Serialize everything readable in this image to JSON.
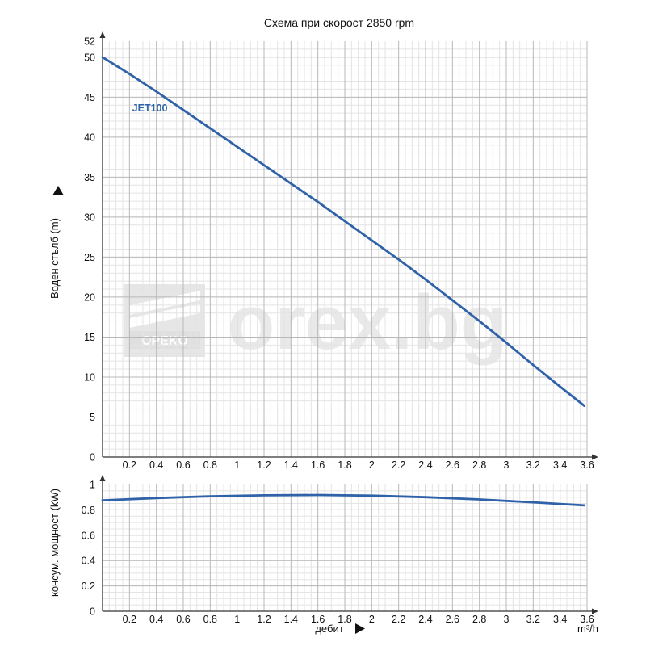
{
  "chart_data": [
    {
      "type": "line",
      "title": "Схема при скорост 2850 rpm",
      "xlabel": "",
      "ylabel": "Воден стълб (m)",
      "xlim": [
        0,
        3.6
      ],
      "ylim": [
        0,
        52
      ],
      "grid": true,
      "x_ticks": [
        "0.2",
        "0.4",
        "0.6",
        "0.8",
        "1",
        "1.2",
        "1.4",
        "1.6",
        "1.8",
        "2",
        "2.2",
        "2.4",
        "2.6",
        "2.8",
        "3",
        "3.2",
        "3.4",
        "3.6"
      ],
      "y_ticks": [
        "0",
        "5",
        "10",
        "15",
        "20",
        "25",
        "30",
        "35",
        "40",
        "45",
        "50",
        "52"
      ],
      "series": [
        {
          "name": "JET100",
          "x": [
            0,
            0.2,
            0.4,
            0.6,
            0.8,
            1.0,
            1.2,
            1.4,
            1.6,
            1.8,
            2.0,
            2.2,
            2.4,
            2.6,
            2.8,
            3.0,
            3.2,
            3.4,
            3.58
          ],
          "y": [
            50,
            47.9,
            45.7,
            43.4,
            41.1,
            38.8,
            36.5,
            34.2,
            31.9,
            29.5,
            27.1,
            24.7,
            22.2,
            19.6,
            17.0,
            14.3,
            11.5,
            8.8,
            6.4
          ]
        }
      ]
    },
    {
      "type": "line",
      "title": "",
      "xlabel": "дебит",
      "xunit": "m³/h",
      "ylabel": "консум. мощност (kW)",
      "xlim": [
        0,
        3.6
      ],
      "ylim": [
        0,
        1
      ],
      "grid": true,
      "x_ticks": [
        "0.2",
        "0.4",
        "0.6",
        "0.8",
        "1",
        "1.2",
        "1.4",
        "1.6",
        "1.8",
        "2",
        "2.2",
        "2.4",
        "2.6",
        "2.8",
        "3",
        "3.2",
        "3.4",
        "3.6"
      ],
      "y_ticks": [
        "0",
        "0.2",
        "0.4",
        "0.6",
        "0.8",
        "1"
      ],
      "series": [
        {
          "x": [
            0,
            0.4,
            0.8,
            1.2,
            1.6,
            2.0,
            2.4,
            2.8,
            3.2,
            3.58
          ],
          "y": [
            0.875,
            0.893,
            0.907,
            0.915,
            0.917,
            0.912,
            0.9,
            0.882,
            0.859,
            0.835
          ]
        }
      ]
    }
  ],
  "watermark": {
    "logo_text": "OPEKO",
    "site_text": "orex.bg"
  },
  "colors": {
    "line": "#2f62a8",
    "grid_major": "#b8b8b8",
    "grid_minor": "#e4e4e4",
    "axis": "#333333"
  }
}
